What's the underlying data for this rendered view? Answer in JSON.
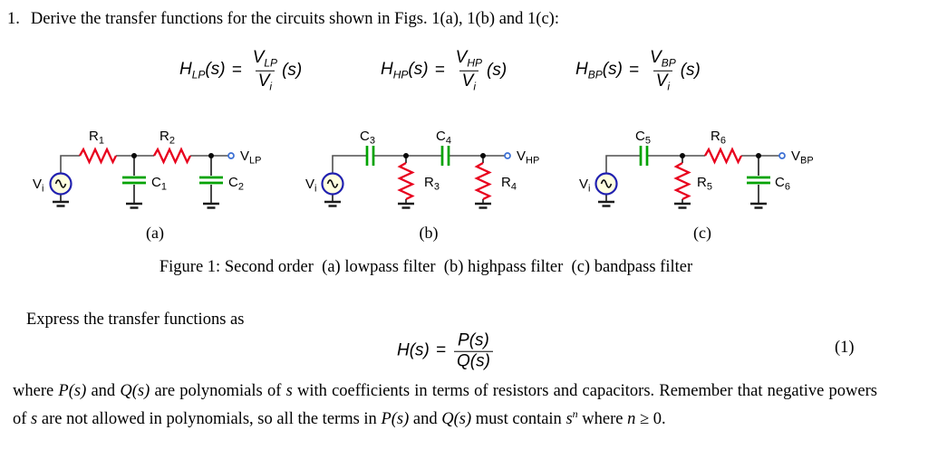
{
  "problem": {
    "number": "1.",
    "text": "Derive the transfer functions for the circuits shown in Figs. 1(a), 1(b) and 1(c):"
  },
  "equations": {
    "lp": {
      "name": "H",
      "sub": "LP",
      "arg": "(s)",
      "rel": "=",
      "num_base": "V",
      "num_sub": "LP",
      "den_base": "V",
      "den_sub": "i",
      "tail": "(s)"
    },
    "hp": {
      "name": "H",
      "sub": "HP",
      "arg": "(s)",
      "rel": "=",
      "num_base": "V",
      "num_sub": "HP",
      "den_base": "V",
      "den_sub": "i",
      "tail": "(s)"
    },
    "bp": {
      "name": "H",
      "sub": "BP",
      "arg": "(s)",
      "rel": "=",
      "num_base": "V",
      "num_sub": "BP",
      "den_base": "V",
      "den_sub": "i",
      "tail": "(s)"
    },
    "main": {
      "name": "H",
      "arg": "(s)",
      "rel": "=",
      "num": "P(s)",
      "den": "Q(s)",
      "tag": "(1)"
    }
  },
  "circuits": {
    "a": {
      "caption": "(a)",
      "source": {
        "b": "V",
        "s": "i"
      },
      "series1": {
        "b": "R",
        "s": "1"
      },
      "shunt1": {
        "b": "C",
        "s": "1"
      },
      "series2": {
        "b": "R",
        "s": "2"
      },
      "shunt2": {
        "b": "C",
        "s": "2"
      },
      "out": {
        "b": "V",
        "s": "LP"
      }
    },
    "b": {
      "caption": "(b)",
      "source": {
        "b": "V",
        "s": "i"
      },
      "series1": {
        "b": "C",
        "s": "3"
      },
      "shunt1": {
        "b": "R",
        "s": "3"
      },
      "series2": {
        "b": "C",
        "s": "4"
      },
      "shunt2": {
        "b": "R",
        "s": "4"
      },
      "out": {
        "b": "V",
        "s": "HP"
      }
    },
    "c": {
      "caption": "(c)",
      "source": {
        "b": "V",
        "s": "i"
      },
      "series1": {
        "b": "C",
        "s": "5"
      },
      "shunt1": {
        "b": "R",
        "s": "5"
      },
      "series2": {
        "b": "R",
        "s": "6"
      },
      "shunt2": {
        "b": "C",
        "s": "6"
      },
      "out": {
        "b": "V",
        "s": "BP"
      }
    }
  },
  "figure_caption": "Figure 1: Second order  (a) lowpass filter  (b) highpass filter  (c) bandpass filter",
  "express_line": "Express the transfer functions as",
  "body_text": {
    "runs": [
      {
        "t": "where "
      },
      {
        "t": "P(s)",
        "i": 1
      },
      {
        "t": " and "
      },
      {
        "t": "Q(s)",
        "i": 1
      },
      {
        "t": " are polynomials of "
      },
      {
        "t": "s",
        "i": 1
      },
      {
        "t": " with coefficients in terms of resistors and capacitors.  Remember that negative powers of "
      },
      {
        "t": "s",
        "i": 1
      },
      {
        "t": " are not allowed in polynomials, so all the terms in "
      },
      {
        "t": "P(s)",
        "i": 1
      },
      {
        "t": " and "
      },
      {
        "t": "Q(s)",
        "i": 1
      },
      {
        "t": " must contain "
      },
      {
        "t": "s",
        "i": 1
      },
      {
        "t": "n",
        "i": 1,
        "sup": 1
      },
      {
        "t": " where "
      },
      {
        "t": "n",
        "i": 1
      },
      {
        "t": " ≥ 0."
      }
    ]
  },
  "colors": {
    "resistor": "#e8001d",
    "capacitor": "#00a300",
    "wire": "#4f4f4f",
    "source_stroke": "#2121b0",
    "source_fill": "#ffffe0",
    "terminal": "#3b6fd4"
  }
}
